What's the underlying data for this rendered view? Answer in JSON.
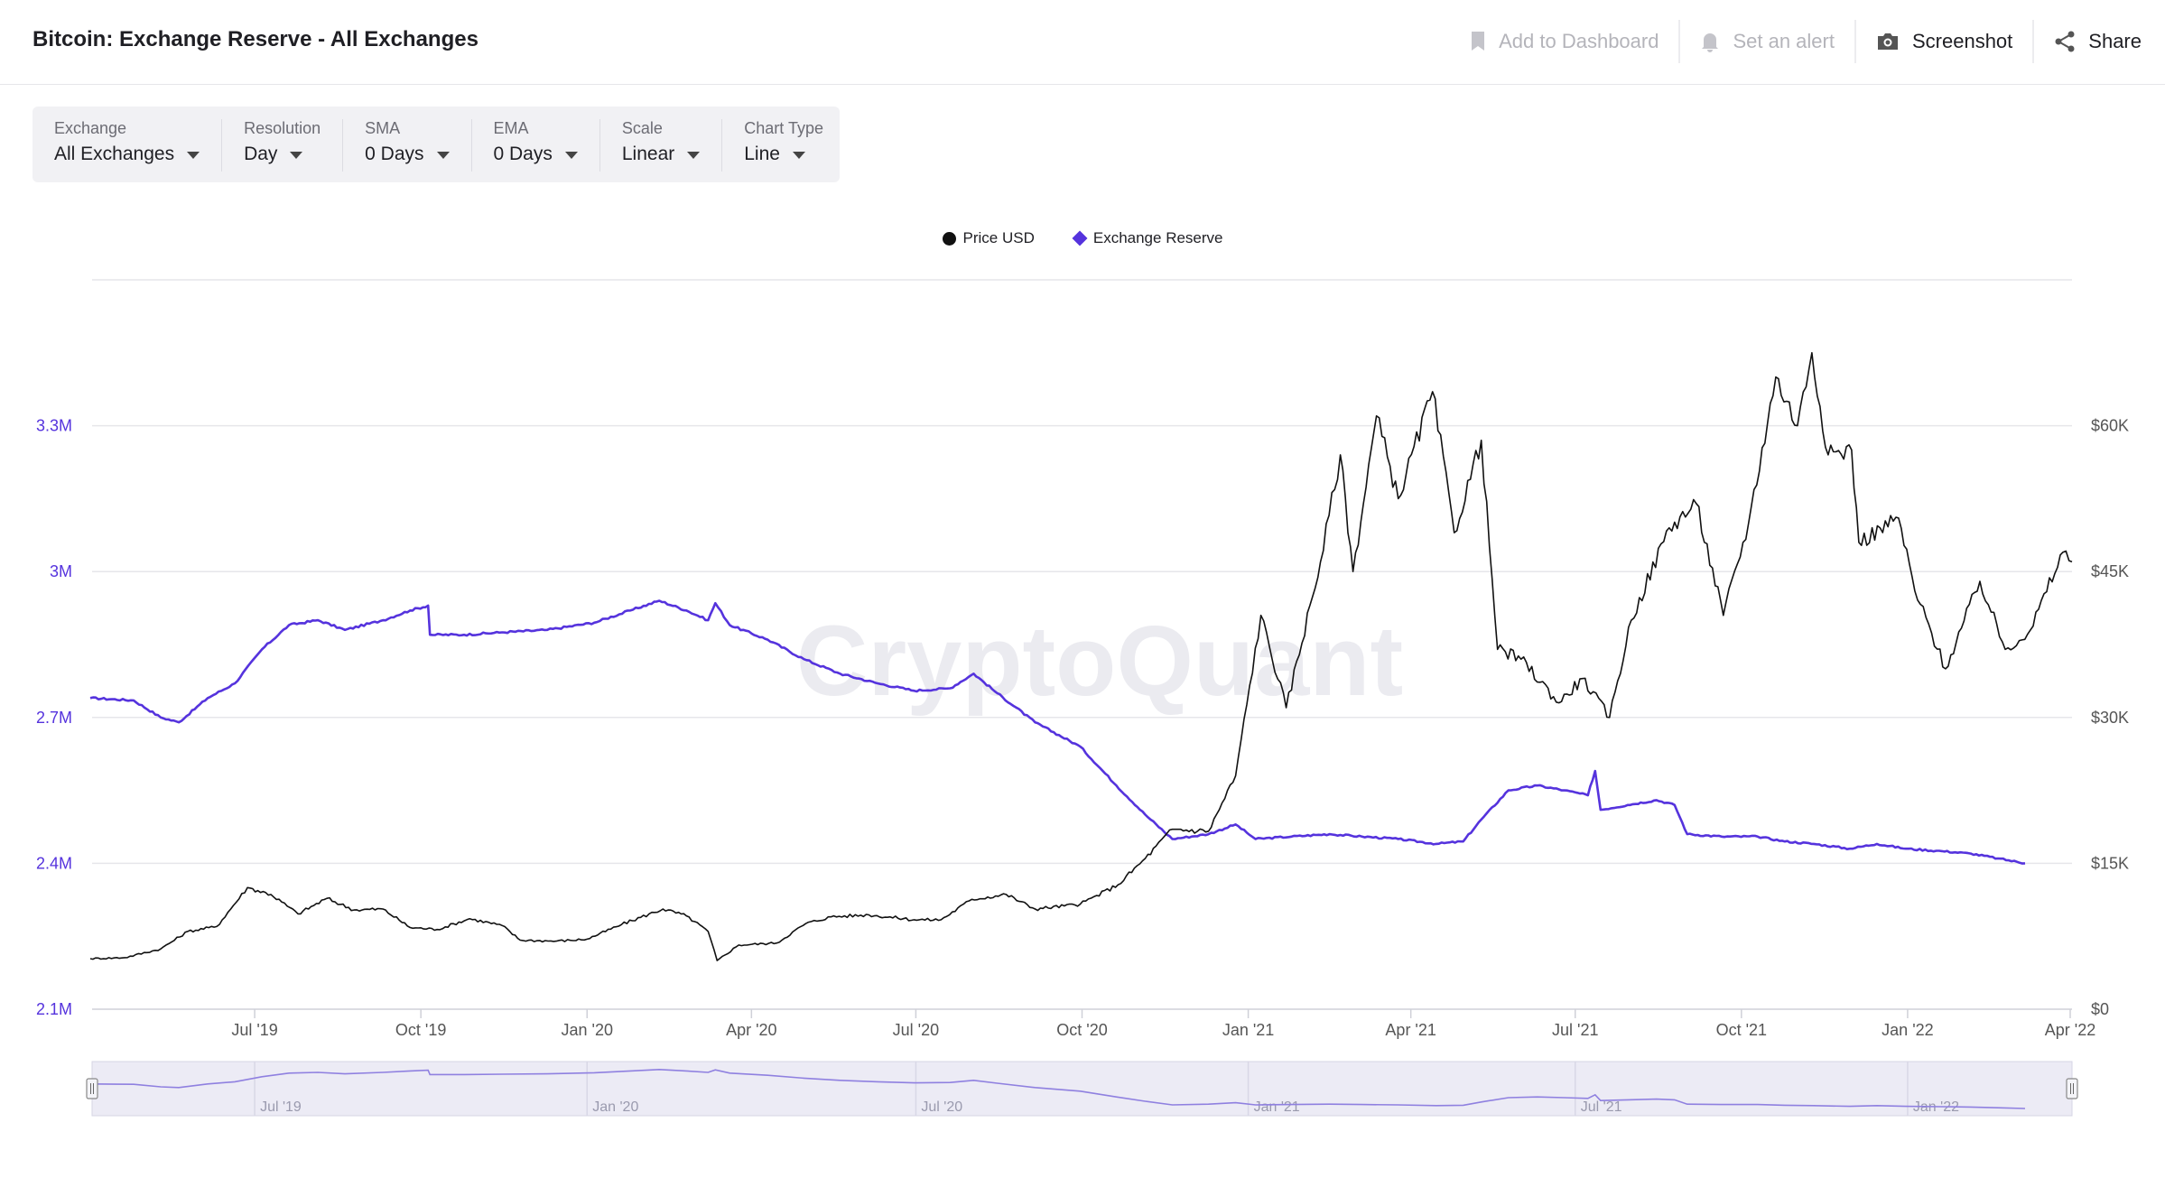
{
  "header": {
    "title": "Bitcoin: Exchange Reserve - All Exchanges",
    "actions": [
      {
        "label": "Add to Dashboard",
        "icon": "bookmark-icon",
        "enabled": false
      },
      {
        "label": "Set an alert",
        "icon": "bell-icon",
        "enabled": false
      },
      {
        "label": "Screenshot",
        "icon": "camera-icon",
        "enabled": true
      },
      {
        "label": "Share",
        "icon": "share-icon",
        "enabled": true
      }
    ]
  },
  "controls": [
    {
      "label": "Exchange",
      "value": "All Exchanges"
    },
    {
      "label": "Resolution",
      "value": "Day"
    },
    {
      "label": "SMA",
      "value": "0 Days"
    },
    {
      "label": "EMA",
      "value": "0 Days"
    },
    {
      "label": "Scale",
      "value": "Linear"
    },
    {
      "label": "Chart Type",
      "value": "Line"
    }
  ],
  "watermark": "CryptoQuant",
  "colors": {
    "price": "#111111",
    "reserve": "#5533dd",
    "grid": "#e6e6ea"
  },
  "chart_data": {
    "type": "line",
    "title": "Bitcoin: Exchange Reserve - All Exchanges",
    "legend": [
      "Price USD",
      "Exchange Reserve"
    ],
    "legend_position": "top-center",
    "grid": true,
    "x_ticks": [
      "Jul '19",
      "Oct '19",
      "Jan '20",
      "Apr '20",
      "Jul '20",
      "Oct '20",
      "Jan '21",
      "Apr '21",
      "Jul '21",
      "Oct '21",
      "Jan '22",
      "Apr '22"
    ],
    "y_left_ticks": [
      "2.1M",
      "2.4M",
      "2.7M",
      "3M",
      "3.3M"
    ],
    "y_right_ticks": [
      "$0",
      "$15K",
      "$30K",
      "$45K",
      "$60K"
    ],
    "y_left_range": [
      2100000,
      3600000
    ],
    "y_right_range": [
      0,
      75000
    ],
    "x_range": [
      "2019-04-02",
      "2022-04-02"
    ],
    "navigator_ticks": [
      "Jul '19",
      "Jan '20",
      "Jul '20",
      "Jan '21",
      "Jul '21",
      "Jan '22"
    ],
    "series": [
      {
        "name": "Exchange Reserve",
        "axis": "left",
        "color": "#5533dd",
        "points": [
          [
            "2019-04-01",
            2740000
          ],
          [
            "2019-04-25",
            2735000
          ],
          [
            "2019-05-10",
            2700000
          ],
          [
            "2019-05-20",
            2690000
          ],
          [
            "2019-06-05",
            2740000
          ],
          [
            "2019-06-20",
            2770000
          ],
          [
            "2019-07-05",
            2840000
          ],
          [
            "2019-07-20",
            2890000
          ],
          [
            "2019-08-05",
            2900000
          ],
          [
            "2019-08-20",
            2880000
          ],
          [
            "2019-09-10",
            2900000
          ],
          [
            "2019-09-25",
            2920000
          ],
          [
            "2019-10-05",
            2930000
          ],
          [
            "2019-10-06",
            2870000
          ],
          [
            "2019-10-25",
            2870000
          ],
          [
            "2019-11-15",
            2875000
          ],
          [
            "2019-12-10",
            2880000
          ],
          [
            "2020-01-05",
            2895000
          ],
          [
            "2020-01-25",
            2920000
          ],
          [
            "2020-02-10",
            2940000
          ],
          [
            "2020-02-25",
            2920000
          ],
          [
            "2020-03-08",
            2900000
          ],
          [
            "2020-03-12",
            2935000
          ],
          [
            "2020-03-20",
            2890000
          ],
          [
            "2020-04-10",
            2860000
          ],
          [
            "2020-04-30",
            2820000
          ],
          [
            "2020-05-20",
            2790000
          ],
          [
            "2020-06-10",
            2770000
          ],
          [
            "2020-06-30",
            2755000
          ],
          [
            "2020-07-20",
            2760000
          ],
          [
            "2020-08-02",
            2790000
          ],
          [
            "2020-08-15",
            2750000
          ],
          [
            "2020-09-05",
            2690000
          ],
          [
            "2020-09-30",
            2640000
          ],
          [
            "2020-10-20",
            2560000
          ],
          [
            "2020-11-05",
            2500000
          ],
          [
            "2020-11-20",
            2450000
          ],
          [
            "2020-12-10",
            2460000
          ],
          [
            "2020-12-25",
            2480000
          ],
          [
            "2021-01-05",
            2450000
          ],
          [
            "2021-01-25",
            2455000
          ],
          [
            "2021-02-15",
            2460000
          ],
          [
            "2021-03-05",
            2455000
          ],
          [
            "2021-03-25",
            2450000
          ],
          [
            "2021-04-15",
            2440000
          ],
          [
            "2021-04-30",
            2445000
          ],
          [
            "2021-05-10",
            2490000
          ],
          [
            "2021-05-25",
            2550000
          ],
          [
            "2021-06-10",
            2560000
          ],
          [
            "2021-06-25",
            2550000
          ],
          [
            "2021-07-08",
            2540000
          ],
          [
            "2021-07-12",
            2590000
          ],
          [
            "2021-07-15",
            2510000
          ],
          [
            "2021-07-30",
            2520000
          ],
          [
            "2021-08-15",
            2530000
          ],
          [
            "2021-08-25",
            2520000
          ],
          [
            "2021-09-01",
            2460000
          ],
          [
            "2021-09-20",
            2455000
          ],
          [
            "2021-10-10",
            2455000
          ],
          [
            "2021-10-25",
            2445000
          ],
          [
            "2021-11-10",
            2440000
          ],
          [
            "2021-11-30",
            2430000
          ],
          [
            "2021-12-15",
            2440000
          ],
          [
            "2021-12-31",
            2430000
          ],
          [
            "2022-01-20",
            2425000
          ],
          [
            "2022-02-05",
            2420000
          ],
          [
            "2022-02-20",
            2410000
          ],
          [
            "2022-03-07",
            2400000
          ]
        ]
      },
      {
        "name": "Price USD",
        "axis": "right",
        "color": "#111111",
        "points": [
          [
            "2019-04-01",
            5200
          ],
          [
            "2019-04-20",
            5300
          ],
          [
            "2019-05-10",
            6200
          ],
          [
            "2019-05-25",
            8000
          ],
          [
            "2019-06-10",
            8500
          ],
          [
            "2019-06-27",
            12500
          ],
          [
            "2019-07-10",
            11800
          ],
          [
            "2019-07-25",
            9800
          ],
          [
            "2019-08-10",
            11400
          ],
          [
            "2019-08-25",
            10200
          ],
          [
            "2019-09-10",
            10300
          ],
          [
            "2019-09-25",
            8400
          ],
          [
            "2019-10-10",
            8200
          ],
          [
            "2019-10-28",
            9300
          ],
          [
            "2019-11-15",
            8600
          ],
          [
            "2019-11-25",
            7100
          ],
          [
            "2019-12-15",
            7000
          ],
          [
            "2020-01-01",
            7200
          ],
          [
            "2020-01-20",
            8700
          ],
          [
            "2020-02-12",
            10300
          ],
          [
            "2020-02-25",
            9600
          ],
          [
            "2020-03-08",
            8000
          ],
          [
            "2020-03-13",
            5000
          ],
          [
            "2020-03-25",
            6600
          ],
          [
            "2020-04-15",
            6800
          ],
          [
            "2020-05-01",
            8800
          ],
          [
            "2020-05-15",
            9500
          ],
          [
            "2020-06-05",
            9700
          ],
          [
            "2020-06-30",
            9200
          ],
          [
            "2020-07-15",
            9200
          ],
          [
            "2020-08-01",
            11300
          ],
          [
            "2020-08-20",
            11800
          ],
          [
            "2020-09-05",
            10300
          ],
          [
            "2020-09-30",
            10800
          ],
          [
            "2020-10-21",
            12800
          ],
          [
            "2020-11-05",
            15500
          ],
          [
            "2020-11-20",
            18500
          ],
          [
            "2020-12-10",
            18300
          ],
          [
            "2020-12-25",
            24000
          ],
          [
            "2021-01-08",
            40500
          ],
          [
            "2021-01-22",
            31000
          ],
          [
            "2021-02-10",
            46000
          ],
          [
            "2021-02-21",
            57000
          ],
          [
            "2021-02-28",
            45000
          ],
          [
            "2021-03-13",
            61000
          ],
          [
            "2021-03-25",
            52500
          ],
          [
            "2021-04-13",
            63500
          ],
          [
            "2021-04-25",
            49000
          ],
          [
            "2021-05-10",
            58500
          ],
          [
            "2021-05-19",
            37000
          ],
          [
            "2021-06-01",
            36000
          ],
          [
            "2021-06-22",
            31500
          ],
          [
            "2021-07-05",
            34000
          ],
          [
            "2021-07-20",
            30000
          ],
          [
            "2021-08-01",
            40000
          ],
          [
            "2021-08-22",
            49500
          ],
          [
            "2021-09-06",
            52000
          ],
          [
            "2021-09-21",
            40500
          ],
          [
            "2021-10-05",
            50000
          ],
          [
            "2021-10-20",
            65000
          ],
          [
            "2021-11-01",
            60000
          ],
          [
            "2021-11-09",
            67500
          ],
          [
            "2021-11-18",
            57000
          ],
          [
            "2021-12-01",
            57500
          ],
          [
            "2021-12-05",
            48000
          ],
          [
            "2021-12-27",
            50500
          ],
          [
            "2022-01-05",
            43000
          ],
          [
            "2022-01-22",
            35000
          ],
          [
            "2022-02-10",
            44000
          ],
          [
            "2022-02-24",
            37000
          ],
          [
            "2022-03-10",
            39000
          ],
          [
            "2022-03-28",
            47000
          ],
          [
            "2022-04-02",
            46000
          ]
        ]
      }
    ]
  }
}
